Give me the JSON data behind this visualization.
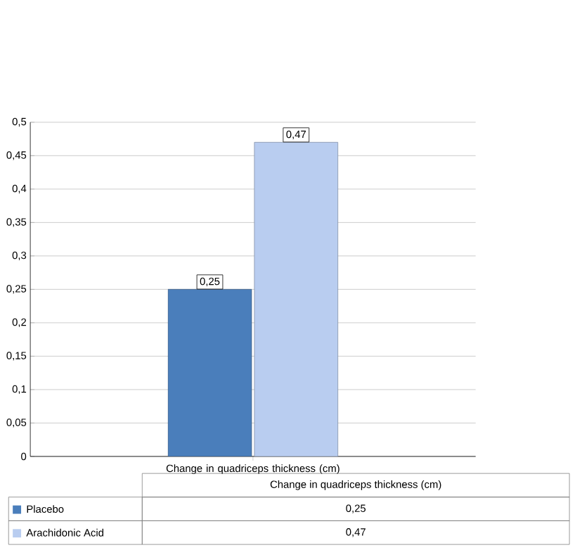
{
  "chart_data": {
    "type": "bar",
    "categories": [
      "Change in quadriceps thickness (cm)"
    ],
    "series": [
      {
        "name": "Placebo",
        "color": "#4a7ebb",
        "values": [
          0.25
        ],
        "value_labels": [
          "0,25"
        ]
      },
      {
        "name": "Arachidonic Acid",
        "color": "#b9cdf0",
        "values": [
          0.47
        ],
        "value_labels": [
          "0,47"
        ]
      }
    ],
    "ylim": [
      0,
      0.5
    ],
    "yticks": [
      {
        "value": 0,
        "label": "0"
      },
      {
        "value": 0.05,
        "label": "0,05"
      },
      {
        "value": 0.1,
        "label": "0,1"
      },
      {
        "value": 0.15,
        "label": "0,15"
      },
      {
        "value": 0.2,
        "label": "0,2"
      },
      {
        "value": 0.25,
        "label": "0,25"
      },
      {
        "value": 0.3,
        "label": "0,3"
      },
      {
        "value": 0.35,
        "label": "0,35"
      },
      {
        "value": 0.4,
        "label": "0,4"
      },
      {
        "value": 0.45,
        "label": "0,45"
      },
      {
        "value": 0.5,
        "label": "0,5"
      }
    ],
    "grid": "y",
    "legend": "bottom"
  }
}
